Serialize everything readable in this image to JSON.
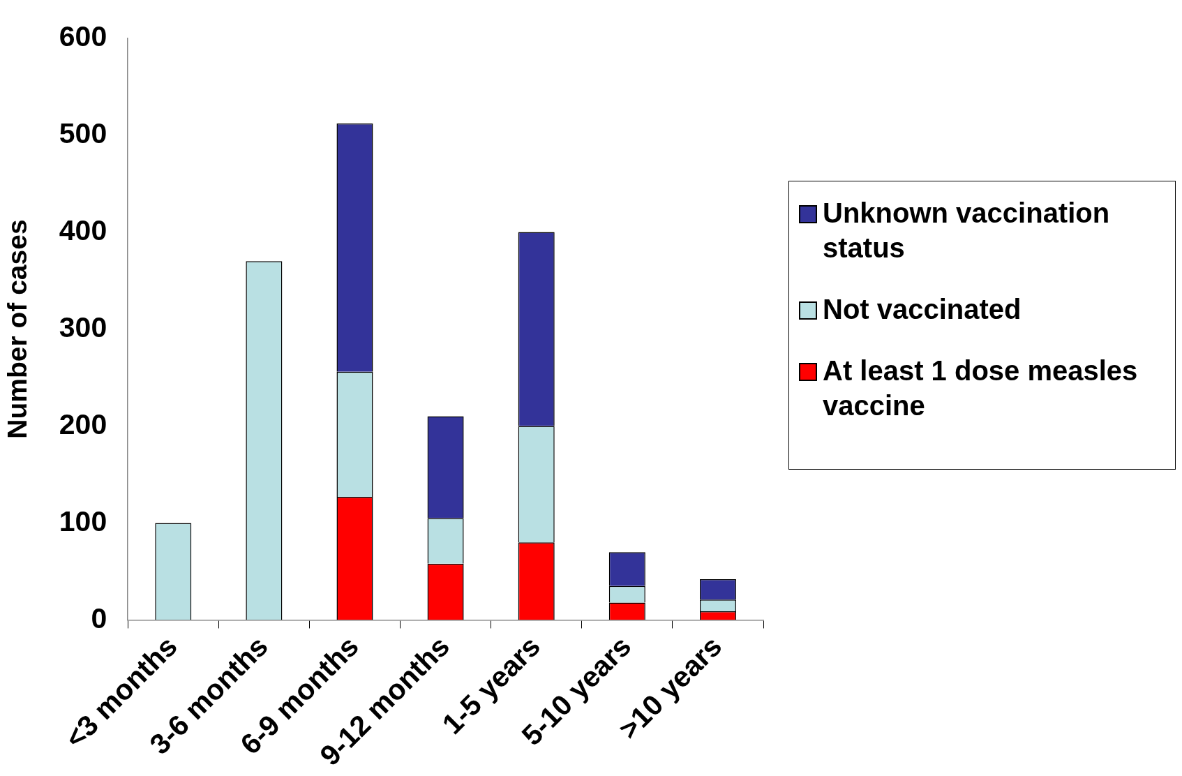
{
  "chart_data": {
    "type": "bar",
    "stacked": true,
    "ylabel": "Number of cases",
    "categories": [
      "<3 months",
      "3-6 months",
      "6-9 months",
      "9-12 months",
      "1-5 years",
      "5-10 years",
      ">10 years"
    ],
    "series": [
      {
        "name": "At least 1 dose measles vaccine",
        "color": "#ff0000",
        "values": [
          0,
          0,
          127,
          58,
          80,
          18,
          9
        ]
      },
      {
        "name": "Not vaccinated",
        "color": "#b9e0e3",
        "values": [
          100,
          370,
          129,
          47,
          120,
          17,
          12
        ]
      },
      {
        "name": "Unknown vaccination status",
        "color": "#333399",
        "values": [
          0,
          0,
          256,
          105,
          200,
          35,
          21
        ]
      }
    ],
    "ylim": [
      0,
      600
    ],
    "yticks": [
      0,
      100,
      200,
      300,
      400,
      500,
      600
    ],
    "grid": false,
    "legend": "right"
  }
}
